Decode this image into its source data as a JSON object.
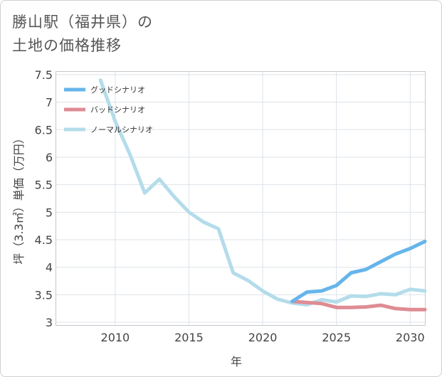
{
  "title_lines": [
    "勝山駅（福井県）の",
    "土地の価格推移"
  ],
  "chart_data": {
    "type": "line",
    "xlabel": "年",
    "ylabel": "坪（3.3㎡）単価（万円）",
    "xlim": [
      2006,
      2031
    ],
    "ylim": [
      2.95,
      7.55
    ],
    "x_ticks": [
      2010,
      2015,
      2020,
      2025,
      2030
    ],
    "y_ticks": [
      3,
      3.5,
      4,
      4.5,
      5,
      5.5,
      6,
      6.5,
      7,
      7.5
    ],
    "y_tick_labels": [
      "3",
      "3.5",
      "4",
      "4.5",
      "5",
      "5.5",
      "6",
      "6.5",
      "7",
      "7.5"
    ],
    "grid": true,
    "legend_position": "top-left",
    "series": [
      {
        "name": "グッドシナリオ",
        "color": "#66b5ea",
        "x": [
          2022,
          2023,
          2024,
          2025,
          2026,
          2027,
          2028,
          2029,
          2030,
          2031
        ],
        "values": [
          3.38,
          3.55,
          3.57,
          3.67,
          3.9,
          3.96,
          4.1,
          4.24,
          4.34,
          4.47
        ]
      },
      {
        "name": "バッドシナリオ",
        "color": "#de8c93",
        "x": [
          2022,
          2023,
          2024,
          2025,
          2026,
          2027,
          2028,
          2029,
          2030,
          2031
        ],
        "values": [
          3.38,
          3.36,
          3.34,
          3.27,
          3.27,
          3.28,
          3.31,
          3.25,
          3.23,
          3.23
        ]
      },
      {
        "name": "ノーマルシナリオ",
        "color": "#b4dcea",
        "x": [
          2009,
          2010,
          2011,
          2012,
          2013,
          2014,
          2015,
          2016,
          2017,
          2018,
          2019,
          2020,
          2021,
          2022,
          2023,
          2024,
          2025,
          2026,
          2027,
          2028,
          2029,
          2030,
          2031
        ],
        "values": [
          7.4,
          6.65,
          6.05,
          5.35,
          5.6,
          5.28,
          5.0,
          4.82,
          4.7,
          3.9,
          3.76,
          3.57,
          3.42,
          3.35,
          3.32,
          3.41,
          3.37,
          3.48,
          3.47,
          3.52,
          3.5,
          3.6,
          3.57
        ]
      }
    ]
  }
}
